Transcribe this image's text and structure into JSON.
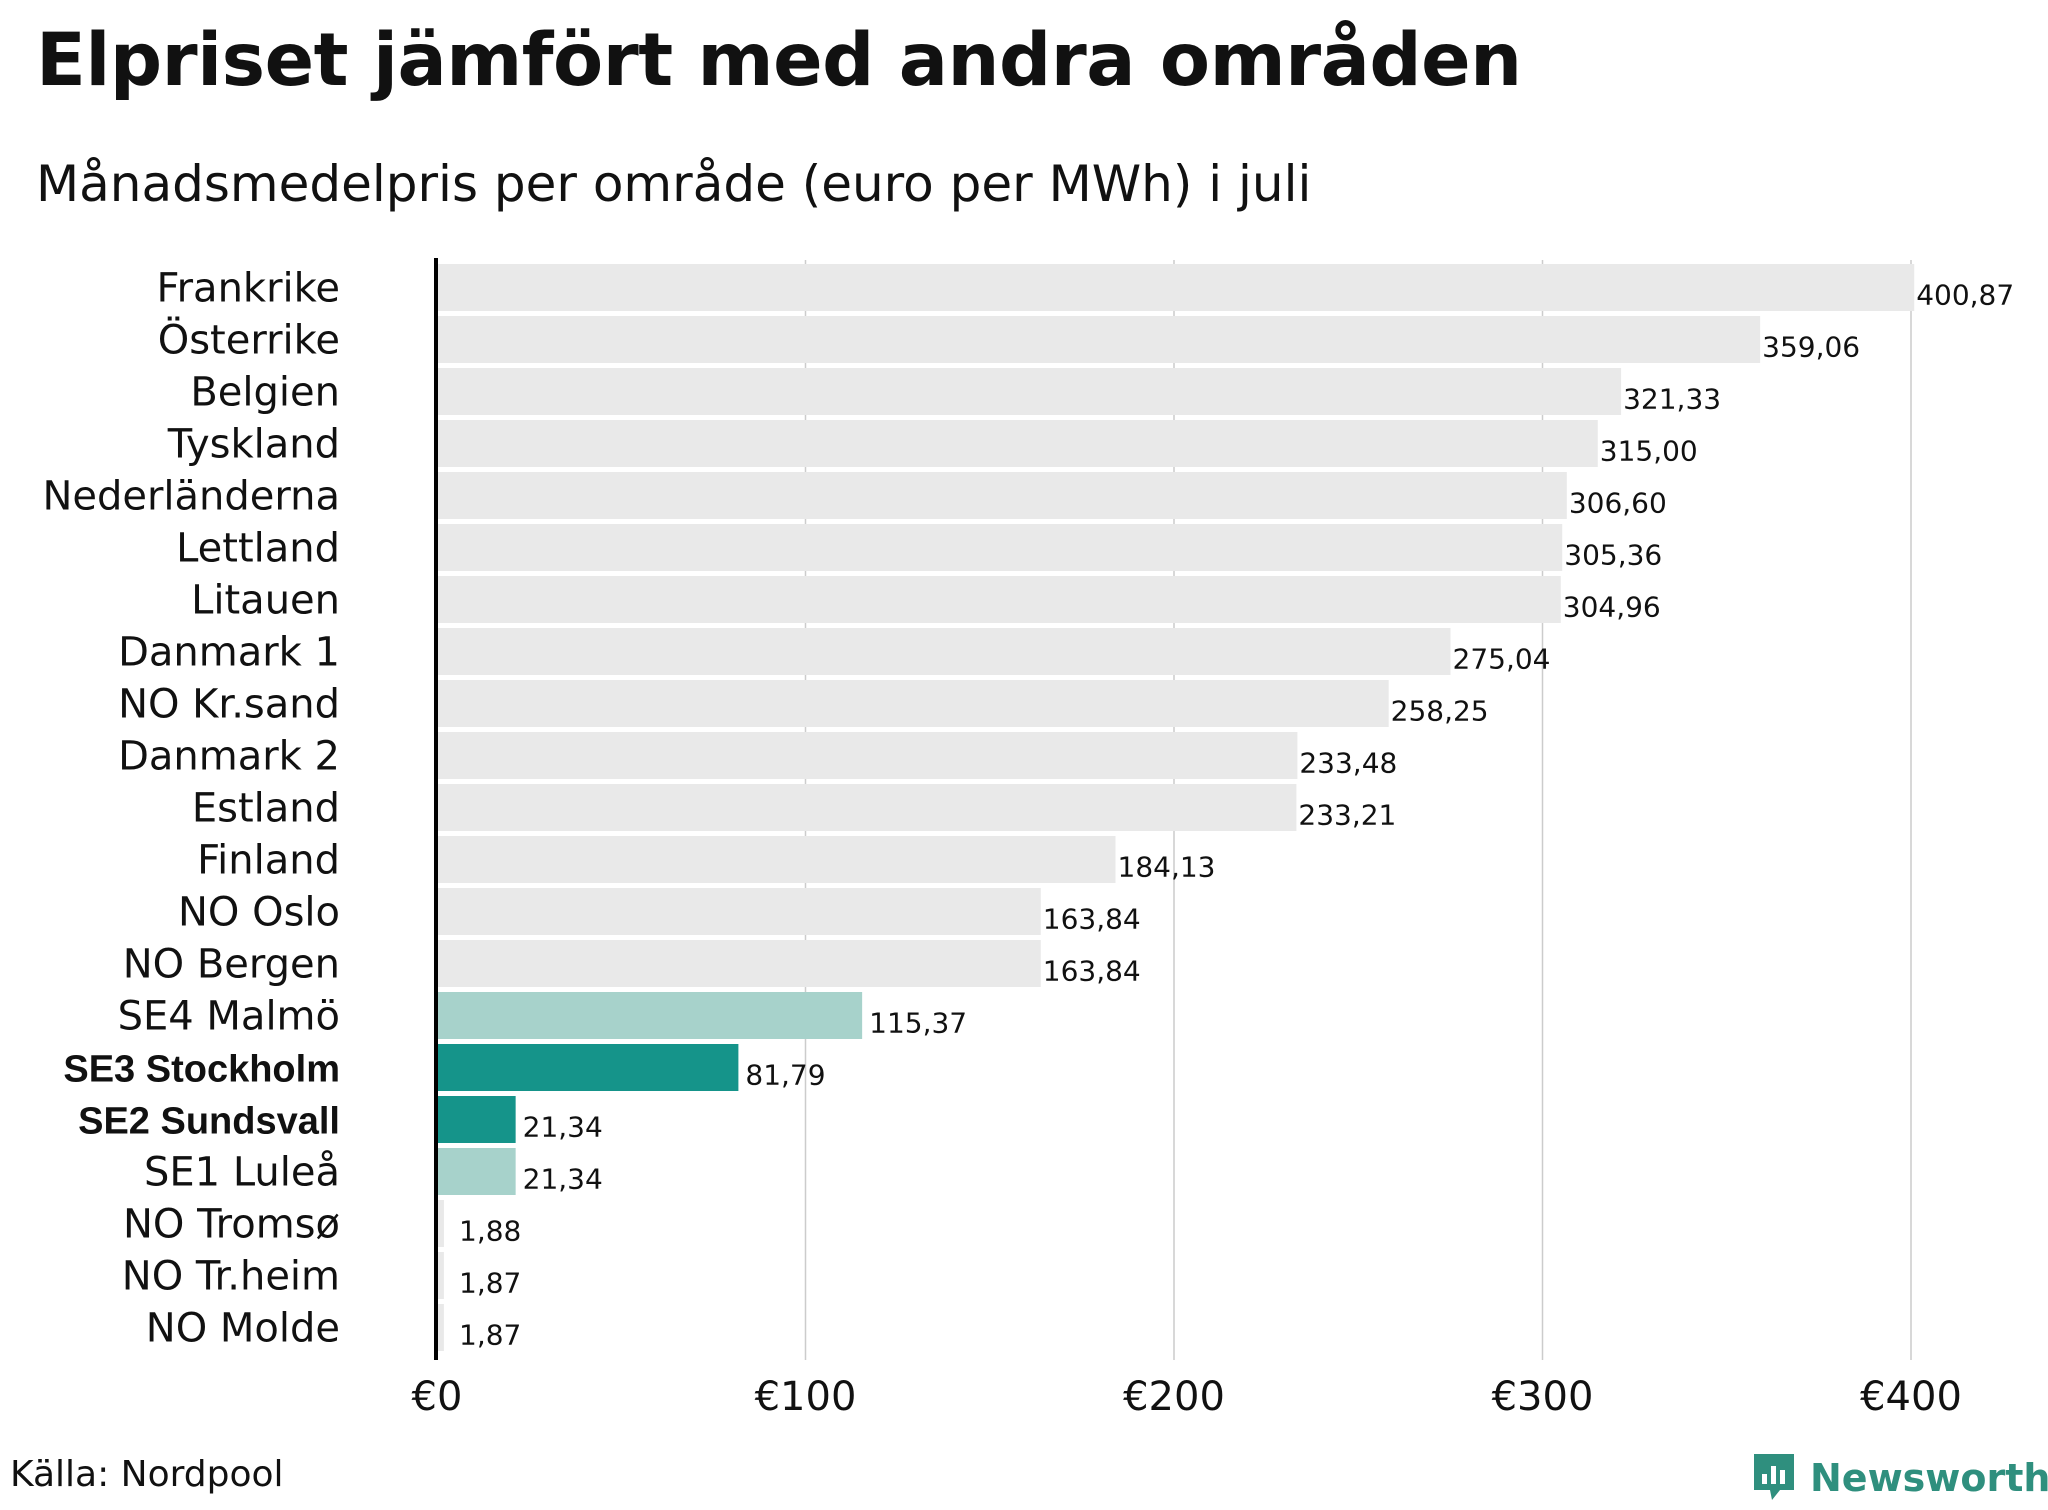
{
  "title": "Elpriset jämfört med andra områden",
  "subtitle": "Månadsmedelpris per område (euro per MWh) i juli",
  "source": "Källa: Nordpool",
  "brand": {
    "name": "Newsworthy",
    "icon": "newsworthy-logo-icon"
  },
  "colors": {
    "default_bar": "#e9e9e9",
    "light_teal": "#a7d2cb",
    "dark_teal": "#15948a",
    "grid": "#cccccc",
    "axis": "#000000",
    "brand": "#2f8f7e"
  },
  "chart_data": {
    "type": "bar",
    "orientation": "horizontal",
    "title": "Elpriset jämfört med andra områden",
    "subtitle": "Månadsmedelpris per område (euro per MWh) i juli",
    "xlabel": "",
    "ylabel": "",
    "xlim": [
      0,
      400
    ],
    "ticks": [
      0,
      100,
      200,
      300,
      400
    ],
    "tick_labels": [
      "€0",
      "€100",
      "€200",
      "€300",
      "€400"
    ],
    "grid": true,
    "categories": [
      "Frankrike",
      "Österrike",
      "Belgien",
      "Tyskland",
      "Nederländerna",
      "Lettland",
      "Litauen",
      "Danmark 1",
      "NO Kr.sand",
      "Danmark 2",
      "Estland",
      "Finland",
      "NO Oslo",
      "NO Bergen",
      "SE4 Malmö",
      "SE3 Stockholm",
      "SE2 Sundsvall",
      "SE1 Luleå",
      "NO Tromsø",
      "NO Tr.heim",
      "NO Molde"
    ],
    "values": [
      400.87,
      359.06,
      321.33,
      315.0,
      306.6,
      305.36,
      304.96,
      275.04,
      258.25,
      233.48,
      233.21,
      184.13,
      163.84,
      163.84,
      115.37,
      81.79,
      21.34,
      21.34,
      1.88,
      1.87,
      1.87
    ],
    "value_labels": [
      "400,87",
      "359,06",
      "321,33",
      "315,00",
      "306,60",
      "305,36",
      "304,96",
      "275,04",
      "258,25",
      "233,48",
      "233,21",
      "184,13",
      "163,84",
      "163,84",
      "115,37",
      "81,79",
      "21,34",
      "21,34",
      "1,88",
      "1,87",
      "1,87"
    ],
    "highlight": [
      "default",
      "default",
      "default",
      "default",
      "default",
      "default",
      "default",
      "default",
      "default",
      "default",
      "default",
      "default",
      "default",
      "default",
      "light",
      "dark",
      "dark",
      "light",
      "default",
      "default",
      "default"
    ],
    "bold_labels": [
      "SE3 Stockholm",
      "SE2 Sundsvall"
    ]
  }
}
